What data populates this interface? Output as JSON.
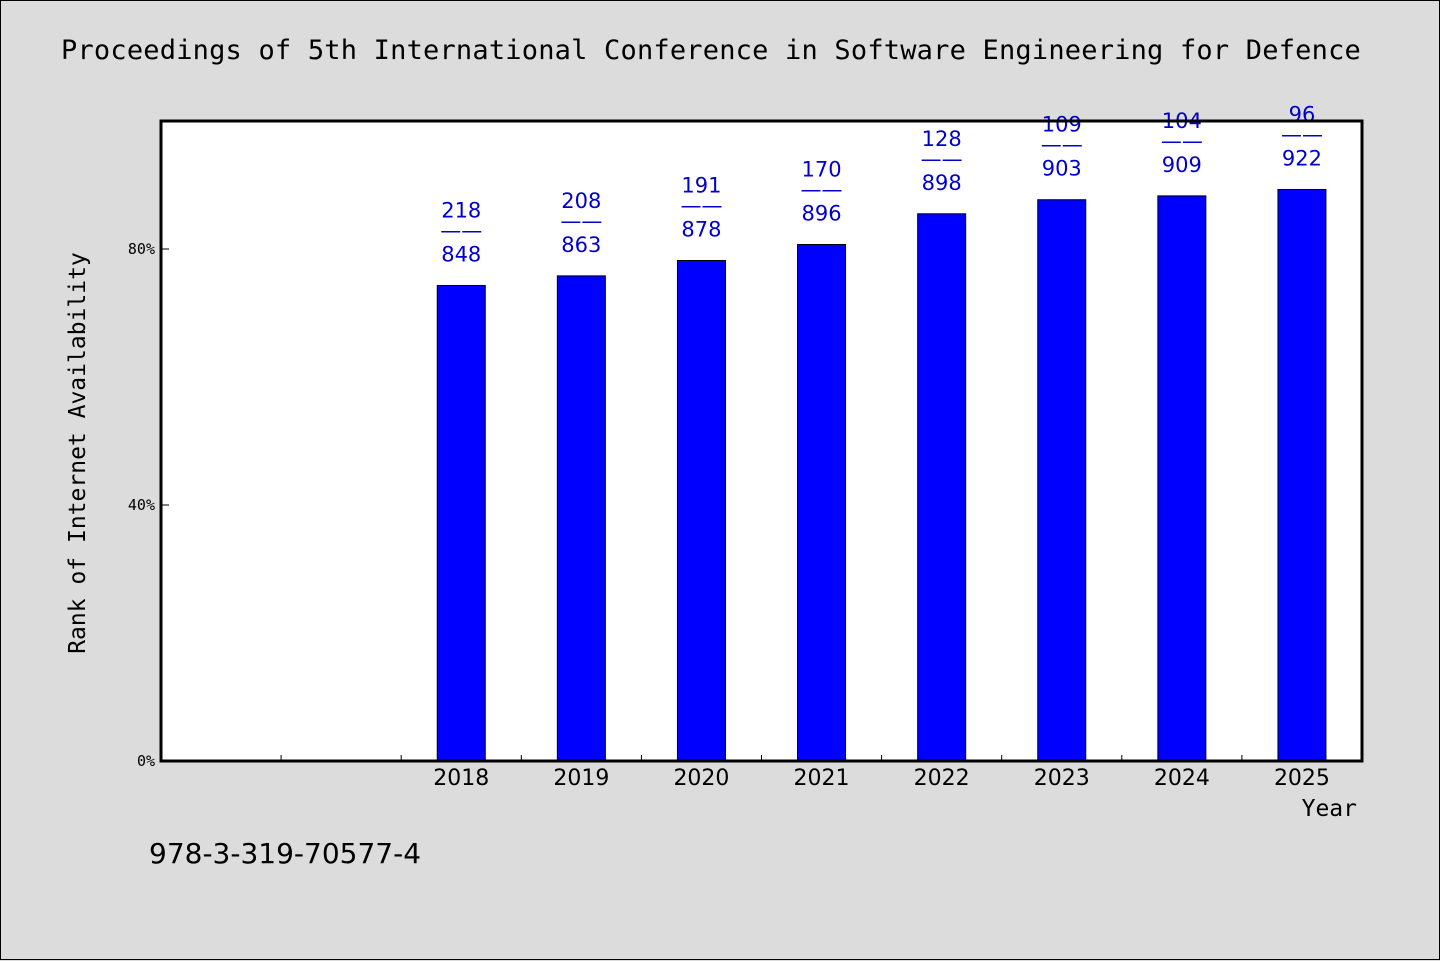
{
  "chart_data": {
    "type": "bar",
    "title": "Proceedings of 5th International Conference in Software Engineering for Defence",
    "xlabel": "Year",
    "ylabel": "Rank of Internet Availability",
    "categories": [
      "",
      "",
      "2018",
      "2019",
      "2020",
      "2021",
      "2022",
      "2023",
      "2024",
      "2025"
    ],
    "values": [
      null,
      null,
      74.3,
      75.8,
      78.2,
      80.7,
      85.5,
      87.7,
      88.3,
      89.3
    ],
    "labels_top": [
      "",
      "",
      "218",
      "208",
      "191",
      "170",
      "128",
      "109",
      "104",
      "96"
    ],
    "labels_bottom": [
      "",
      "",
      "848",
      "863",
      "878",
      "896",
      "898",
      "903",
      "909",
      "922"
    ],
    "label_separator": "——",
    "ylim": [
      0,
      100
    ],
    "yticks": [
      0,
      40,
      80
    ],
    "ytick_labels": [
      "0%",
      "40%",
      "80%"
    ],
    "grid": false,
    "bar_color": "#0000ff",
    "label_color": "#0000cc"
  },
  "footer": {
    "isbn": "978-3-319-70577-4"
  }
}
